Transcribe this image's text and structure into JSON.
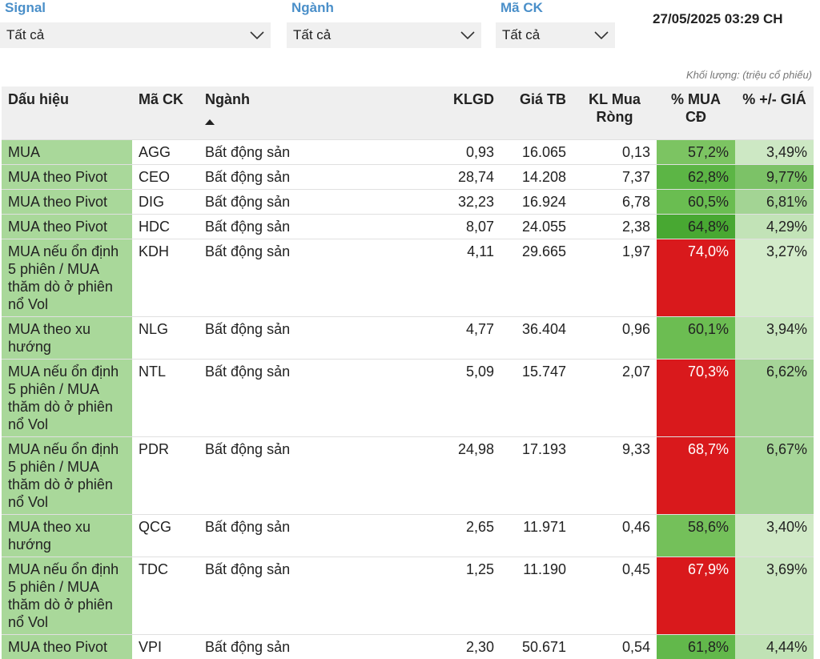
{
  "filters": [
    {
      "label": "Signal",
      "value": "Tất cả"
    },
    {
      "label": "Ngành",
      "value": "Tất cả"
    },
    {
      "label": "Mã CK",
      "value": "Tất cả"
    }
  ],
  "timestamp": "27/05/2025 03:29 CH",
  "note": "Khối lượng: (triệu cổ phiếu)",
  "table": {
    "headers": [
      "Dấu hiệu",
      "Mã CK",
      "Ngành",
      "KLGD",
      "Giá TB",
      "KL Mua Ròng",
      "% MUA CĐ",
      "% +/- GIÁ"
    ],
    "rows": [
      [
        "MUA",
        "AGG",
        "Bất động sản",
        "0,93",
        "16.065",
        "0,13",
        "57,2%",
        "3,49%"
      ],
      [
        "MUA theo Pivot",
        "CEO",
        "Bất động sản",
        "28,74",
        "14.208",
        "7,37",
        "62,8%",
        "9,77%"
      ],
      [
        "MUA theo Pivot",
        "DIG",
        "Bất động sản",
        "32,23",
        "16.924",
        "6,78",
        "60,5%",
        "6,81%"
      ],
      [
        "MUA theo Pivot",
        "HDC",
        "Bất động sản",
        "8,07",
        "24.055",
        "2,38",
        "64,8%",
        "4,29%"
      ],
      [
        "MUA nếu ổn định 5 phiên / MUA thăm dò ở phiên nổ Vol",
        "KDH",
        "Bất động sản",
        "4,11",
        "29.665",
        "1,97",
        "74,0%",
        "3,27%"
      ],
      [
        "MUA theo xu hướng",
        "NLG",
        "Bất động sản",
        "4,77",
        "36.404",
        "0,96",
        "60,1%",
        "3,94%"
      ],
      [
        "MUA nếu ổn định 5 phiên / MUA thăm dò ở phiên nổ Vol",
        "NTL",
        "Bất động sản",
        "5,09",
        "15.747",
        "2,07",
        "70,3%",
        "6,62%"
      ],
      [
        "MUA nếu ổn định 5 phiên / MUA thăm dò ở phiên nổ Vol",
        "PDR",
        "Bất động sản",
        "24,98",
        "17.193",
        "9,33",
        "68,7%",
        "6,67%"
      ],
      [
        "MUA theo xu hướng",
        "QCG",
        "Bất động sản",
        "2,65",
        "11.971",
        "0,46",
        "58,6%",
        "3,40%"
      ],
      [
        "MUA nếu ổn định 5 phiên / MUA thăm dò ở phiên nổ Vol",
        "TDC",
        "Bất động sản",
        "1,25",
        "11.190",
        "0,45",
        "67,9%",
        "3,69%"
      ],
      [
        "MUA theo Pivot",
        "VPI",
        "Bất động sản",
        "2,30",
        "50.671",
        "0,54",
        "61,8%",
        "4,44%"
      ]
    ],
    "mua_cd_colors": [
      "#7cc462",
      "#5cb545",
      "#6abd51",
      "#48a832",
      "#d9191c",
      "#6cbd52",
      "#d9191c",
      "#d9191c",
      "#74c05a",
      "#d9191c",
      "#62b84b"
    ],
    "gia_colors": [
      "#cde8c4",
      "#7cc267",
      "#a3d494",
      "#c2e3b7",
      "#d3ebca",
      "#c8e6be",
      "#a6d598",
      "#a5d597",
      "#d0e9c6",
      "#cbe7c1",
      "#c0e2b5"
    ]
  }
}
